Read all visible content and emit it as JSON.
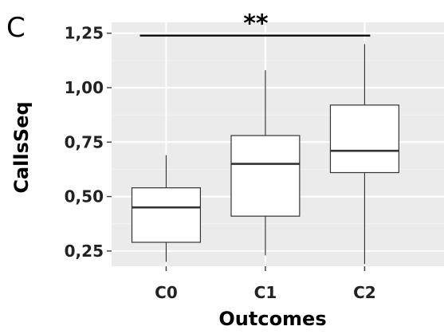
{
  "chart_data": {
    "type": "boxplot",
    "panel_label": "C",
    "xlabel": "Outcomes",
    "ylabel": "CallsSeq",
    "categories": [
      "C0",
      "C1",
      "C2"
    ],
    "ylim": [
      0.18,
      1.3
    ],
    "yticks": [
      0.25,
      0.5,
      0.75,
      1.0,
      1.25
    ],
    "ytick_labels": [
      "0,25",
      "0,50",
      "0,75",
      "1,00",
      "1,25"
    ],
    "boxes": [
      {
        "category": "C0",
        "min": 0.2,
        "q1": 0.29,
        "median": 0.45,
        "q3": 0.54,
        "max": 0.69
      },
      {
        "category": "C1",
        "min": 0.23,
        "q1": 0.41,
        "median": 0.65,
        "q3": 0.78,
        "max": 1.08
      },
      {
        "category": "C2",
        "min": 0.19,
        "q1": 0.61,
        "median": 0.71,
        "q3": 0.92,
        "max": 1.2
      }
    ],
    "significance": {
      "label": "**",
      "from": "C0",
      "to": "C2",
      "y": 1.25
    },
    "grid": true,
    "colors": {
      "panel_background": "#ebebeb",
      "grid_major": "#ffffff",
      "grid_minor": "#f4f4f4",
      "box_fill": "#ffffff",
      "line": "#333333"
    }
  }
}
